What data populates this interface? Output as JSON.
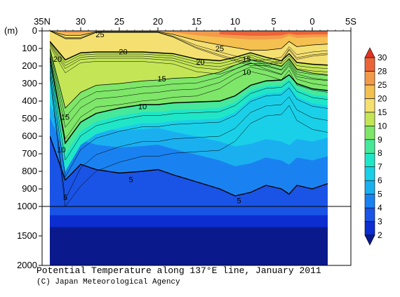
{
  "chart_data": {
    "type": "heatmap",
    "title": "Potential Temperature along 137°E line, January 2011",
    "credit": "(C) Japan Meteorological Agency",
    "x_unit_ticks": [
      "35N",
      "30",
      "25",
      "20",
      "15",
      "10",
      "5",
      "0",
      "5S"
    ],
    "x_tick_values": [
      35,
      30,
      25,
      20,
      15,
      10,
      5,
      0,
      -5
    ],
    "xlim": [
      35,
      -5
    ],
    "data_extent_lat": [
      34,
      -2
    ],
    "y_unit": "(m)",
    "y_ticks_upper": [
      0,
      100,
      200,
      300,
      400,
      500,
      600,
      700,
      800,
      900,
      1000
    ],
    "y_ticks_lower": [
      1500,
      2000
    ],
    "ylim": [
      0,
      2000
    ],
    "axis_break_depth": 1000,
    "colorbar": {
      "levels": [
        "2",
        "3",
        "4",
        "5",
        "6",
        "7",
        "8",
        "9",
        "10",
        "15",
        "20",
        "25",
        "28",
        "30"
      ],
      "colors": [
        "#0a1a8c",
        "#0c2ed0",
        "#1a54e6",
        "#1a82f0",
        "#1ab0f0",
        "#1ad0e8",
        "#20e6c8",
        "#46e89a",
        "#7ee668",
        "#c4e656",
        "#f4e070",
        "#f4c050",
        "#f29a4a",
        "#ea6438",
        "#e03422"
      ],
      "extend": "both"
    },
    "contour_labels": [
      {
        "value": "25",
        "lat": 27.5,
        "depth": 20
      },
      {
        "value": "20",
        "lat": 33,
        "depth": 160
      },
      {
        "value": "20",
        "lat": 24.5,
        "depth": 118
      },
      {
        "value": "25",
        "lat": 12,
        "depth": 100
      },
      {
        "value": "20",
        "lat": 14.5,
        "depth": 175
      },
      {
        "value": "15",
        "lat": 8.5,
        "depth": 160
      },
      {
        "value": "10",
        "lat": 8.5,
        "depth": 233
      },
      {
        "value": "15",
        "lat": 19.5,
        "depth": 272
      },
      {
        "value": "15",
        "lat": 32,
        "depth": 490
      },
      {
        "value": "10",
        "lat": 22,
        "depth": 430
      },
      {
        "value": "10",
        "lat": 32.5,
        "depth": 675
      },
      {
        "value": "5",
        "lat": 23.5,
        "depth": 845
      },
      {
        "value": "5",
        "lat": 32,
        "depth": 947
      },
      {
        "value": "5",
        "lat": 9.5,
        "depth": 965
      }
    ],
    "isotherm_depths_m": {
      "lat": [
        34,
        32,
        30,
        28,
        25,
        22,
        20,
        18,
        15,
        12,
        10,
        8,
        6,
        4,
        3,
        2,
        0,
        -2
      ],
      "t25": [
        null,
        25,
        25,
        5,
        5,
        5,
        5,
        20,
        55,
        80,
        95,
        110,
        110,
        100,
        60,
        90,
        80,
        75
      ],
      "t20": [
        60,
        165,
        125,
        120,
        120,
        120,
        125,
        130,
        160,
        170,
        150,
        125,
        150,
        170,
        130,
        180,
        190,
        195
      ],
      "t15": [
        100,
        440,
        350,
        310,
        300,
        285,
        280,
        270,
        265,
        235,
        195,
        165,
        180,
        200,
        160,
        220,
        240,
        250
      ],
      "t10": [
        150,
        640,
        520,
        470,
        440,
        420,
        420,
        410,
        405,
        400,
        370,
        310,
        285,
        280,
        250,
        300,
        330,
        340
      ],
      "t5": [
        600,
        850,
        760,
        790,
        810,
        800,
        790,
        820,
        860,
        900,
        940,
        920,
        880,
        900,
        930,
        880,
        900,
        870
      ]
    }
  }
}
